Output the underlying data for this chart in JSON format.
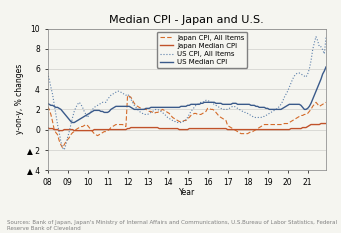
{
  "title": "Median CPI - Japan and U.S.",
  "ylabel": "y-on-y, % changes",
  "xlabel": "Year",
  "source_text": "Sources: Bank of Japan, Japan's Ministry of Internal Affairs and Communications, U.S.Bureau of Labor Statistics, Federal\nReserve Bank of Cleveland",
  "ylim": [
    -4,
    10
  ],
  "yticks": [
    -4,
    -2,
    0,
    2,
    4,
    6,
    8,
    10
  ],
  "ytick_labels": [
    "▲ 4",
    "▲ 2",
    "0",
    "2",
    "4",
    "6",
    "8",
    "10"
  ],
  "xticks": [
    0,
    12,
    24,
    36,
    48,
    60,
    72,
    84,
    96,
    108,
    120,
    132,
    144,
    156,
    168
  ],
  "xtick_labels": [
    "08",
    "09",
    "10",
    "11",
    "12",
    "13",
    "14",
    "15",
    "16",
    "17",
    "18",
    "19",
    "20",
    "21",
    ""
  ],
  "legend": [
    "Japan CPI, All Items",
    "Japan Median CPI",
    "US CPI, All Items",
    "US Median CPI"
  ],
  "colors": {
    "japan_cpi": "#d46b2a",
    "japan_median": "#c0522a",
    "us_cpi": "#5b7faa",
    "us_median": "#3a5a8a"
  },
  "japan_cpi_all": [
    2.3,
    2.0,
    1.5,
    0.8,
    0.0,
    -0.3,
    -0.5,
    -1.1,
    -1.5,
    -1.8,
    -1.5,
    -1.2,
    -1.0,
    -0.8,
    -0.5,
    -0.3,
    -0.2,
    0.0,
    0.1,
    0.2,
    0.3,
    0.3,
    0.4,
    0.5,
    0.4,
    0.2,
    0.0,
    -0.2,
    -0.4,
    -0.5,
    -0.6,
    -0.5,
    -0.4,
    -0.3,
    -0.2,
    -0.2,
    -0.1,
    0.0,
    0.2,
    0.3,
    0.4,
    0.5,
    0.5,
    0.5,
    0.5,
    0.5,
    0.4,
    0.3,
    3.4,
    3.3,
    3.2,
    2.9,
    2.6,
    2.4,
    2.3,
    2.2,
    2.1,
    2.0,
    2.0,
    2.0,
    1.9,
    1.8,
    1.8,
    1.7,
    1.6,
    1.7,
    1.7,
    1.8,
    1.9,
    2.0,
    1.9,
    1.8,
    1.7,
    1.6,
    1.4,
    1.2,
    1.1,
    1.0,
    0.9,
    0.8,
    0.8,
    0.8,
    0.9,
    0.9,
    1.1,
    1.2,
    1.4,
    1.5,
    1.6,
    1.6,
    1.5,
    1.5,
    1.5,
    1.6,
    1.7,
    1.8,
    2.1,
    2.1,
    2.0,
    2.0,
    1.9,
    1.7,
    1.5,
    1.3,
    1.2,
    1.1,
    1.0,
    0.9,
    0.4,
    0.3,
    0.2,
    0.1,
    0.0,
    -0.1,
    -0.2,
    -0.3,
    -0.4,
    -0.4,
    -0.4,
    -0.4,
    -0.4,
    -0.3,
    -0.2,
    -0.2,
    -0.1,
    0.0,
    0.1,
    0.2,
    0.3,
    0.4,
    0.5,
    0.5,
    0.5,
    0.5,
    0.5,
    0.5,
    0.5,
    0.5,
    0.5,
    0.5,
    0.5,
    0.5,
    0.6,
    0.6,
    0.6,
    0.7,
    0.8,
    0.9,
    1.0,
    1.1,
    1.2,
    1.3,
    1.4,
    1.4,
    1.5,
    1.5,
    1.6,
    1.8,
    2.0,
    2.3,
    2.5,
    2.7,
    2.5,
    2.3,
    2.4,
    2.5,
    2.6,
    2.7
  ],
  "japan_median_cpi": [
    0.2,
    0.1,
    0.1,
    0.1,
    0.0,
    0.0,
    0.0,
    -0.1,
    -0.1,
    -0.1,
    0.0,
    0.0,
    0.0,
    0.0,
    0.0,
    0.0,
    -0.1,
    -0.1,
    -0.1,
    -0.1,
    -0.1,
    -0.1,
    -0.1,
    -0.1,
    -0.1,
    -0.1,
    -0.1,
    -0.1,
    0.0,
    0.0,
    0.0,
    0.0,
    0.0,
    0.0,
    0.0,
    0.0,
    0.0,
    0.0,
    0.0,
    0.0,
    0.0,
    0.0,
    0.0,
    0.0,
    0.0,
    0.0,
    0.0,
    0.0,
    0.1,
    0.1,
    0.2,
    0.2,
    0.2,
    0.2,
    0.2,
    0.2,
    0.2,
    0.2,
    0.2,
    0.2,
    0.2,
    0.2,
    0.2,
    0.2,
    0.2,
    0.2,
    0.2,
    0.1,
    0.1,
    0.1,
    0.1,
    0.1,
    0.1,
    0.1,
    0.1,
    0.1,
    0.1,
    0.1,
    0.1,
    0.0,
    0.0,
    0.0,
    0.0,
    0.0,
    0.0,
    0.1,
    0.1,
    0.1,
    0.1,
    0.1,
    0.1,
    0.1,
    0.1,
    0.1,
    0.1,
    0.1,
    0.1,
    0.1,
    0.1,
    0.1,
    0.1,
    0.1,
    0.1,
    0.1,
    0.1,
    0.1,
    0.1,
    0.1,
    0.0,
    0.0,
    0.0,
    0.0,
    0.0,
    0.0,
    0.0,
    0.0,
    0.0,
    0.0,
    0.0,
    0.0,
    0.0,
    0.0,
    0.0,
    0.0,
    0.0,
    0.0,
    0.0,
    0.0,
    0.0,
    0.0,
    0.0,
    0.0,
    0.0,
    0.0,
    0.0,
    0.0,
    0.0,
    0.0,
    0.0,
    0.0,
    0.0,
    0.0,
    0.0,
    0.0,
    0.0,
    0.0,
    0.1,
    0.1,
    0.1,
    0.1,
    0.1,
    0.1,
    0.1,
    0.2,
    0.2,
    0.2,
    0.3,
    0.4,
    0.5,
    0.5,
    0.5,
    0.5,
    0.5,
    0.5,
    0.6,
    0.6,
    0.6,
    0.6
  ],
  "us_cpi_all": [
    5.6,
    5.0,
    4.2,
    3.5,
    2.5,
    1.5,
    0.5,
    -0.3,
    -1.2,
    -1.8,
    -2.0,
    -1.5,
    -0.8,
    -0.2,
    0.5,
    1.2,
    1.8,
    2.2,
    2.5,
    2.7,
    2.5,
    2.2,
    1.8,
    1.5,
    1.2,
    1.5,
    1.8,
    2.0,
    2.2,
    2.3,
    2.4,
    2.5,
    2.6,
    2.7,
    2.7,
    2.7,
    3.0,
    3.2,
    3.4,
    3.5,
    3.6,
    3.7,
    3.8,
    3.8,
    3.7,
    3.6,
    3.5,
    3.4,
    3.5,
    3.3,
    3.0,
    2.7,
    2.4,
    2.2,
    2.0,
    1.8,
    1.7,
    1.6,
    1.5,
    1.5,
    1.5,
    1.6,
    1.7,
    1.8,
    1.9,
    2.0,
    2.0,
    1.9,
    1.8,
    1.7,
    1.5,
    1.4,
    1.2,
    1.1,
    1.0,
    0.9,
    0.8,
    0.8,
    0.7,
    0.7,
    0.7,
    0.8,
    0.8,
    1.0,
    1.2,
    1.5,
    1.8,
    2.0,
    2.2,
    2.4,
    2.5,
    2.6,
    2.7,
    2.7,
    2.8,
    2.9,
    2.9,
    2.8,
    2.7,
    2.6,
    2.5,
    2.4,
    2.3,
    2.2,
    2.1,
    2.0,
    2.0,
    2.0,
    2.0,
    2.1,
    2.2,
    2.3,
    2.3,
    2.2,
    2.1,
    2.0,
    1.9,
    1.8,
    1.7,
    1.7,
    1.6,
    1.5,
    1.4,
    1.3,
    1.2,
    1.2,
    1.2,
    1.2,
    1.2,
    1.3,
    1.3,
    1.4,
    1.5,
    1.6,
    1.7,
    1.8,
    1.9,
    2.0,
    2.1,
    2.3,
    2.5,
    2.8,
    3.2,
    3.5,
    3.8,
    4.2,
    4.6,
    5.0,
    5.3,
    5.5,
    5.6,
    5.6,
    5.5,
    5.4,
    5.3,
    5.2,
    5.5,
    6.0,
    6.8,
    7.9,
    8.6,
    9.2,
    8.8,
    8.2,
    8.2,
    7.9,
    7.5,
    9.1
  ],
  "us_median_cpi": [
    2.6,
    2.5,
    2.4,
    2.4,
    2.3,
    2.2,
    2.2,
    2.1,
    2.0,
    1.8,
    1.6,
    1.4,
    1.2,
    1.0,
    0.8,
    0.7,
    0.7,
    0.8,
    0.9,
    1.0,
    1.1,
    1.2,
    1.3,
    1.4,
    1.5,
    1.6,
    1.7,
    1.8,
    1.9,
    1.9,
    1.9,
    1.9,
    1.8,
    1.8,
    1.7,
    1.7,
    1.7,
    1.8,
    2.0,
    2.1,
    2.2,
    2.3,
    2.3,
    2.3,
    2.3,
    2.3,
    2.3,
    2.3,
    2.3,
    2.3,
    2.2,
    2.1,
    2.0,
    2.0,
    2.0,
    2.0,
    2.0,
    2.0,
    2.0,
    2.1,
    2.1,
    2.1,
    2.2,
    2.2,
    2.2,
    2.2,
    2.2,
    2.2,
    2.2,
    2.2,
    2.2,
    2.2,
    2.2,
    2.2,
    2.2,
    2.2,
    2.2,
    2.2,
    2.2,
    2.2,
    2.3,
    2.3,
    2.3,
    2.3,
    2.4,
    2.4,
    2.5,
    2.5,
    2.5,
    2.5,
    2.5,
    2.5,
    2.6,
    2.6,
    2.7,
    2.7,
    2.7,
    2.7,
    2.7,
    2.7,
    2.7,
    2.6,
    2.6,
    2.6,
    2.6,
    2.5,
    2.5,
    2.5,
    2.5,
    2.5,
    2.5,
    2.6,
    2.6,
    2.6,
    2.5,
    2.5,
    2.5,
    2.5,
    2.5,
    2.5,
    2.5,
    2.5,
    2.4,
    2.4,
    2.4,
    2.3,
    2.3,
    2.2,
    2.2,
    2.2,
    2.2,
    2.1,
    2.1,
    2.0,
    2.0,
    2.0,
    2.0,
    2.0,
    2.0,
    2.0,
    2.0,
    2.1,
    2.2,
    2.3,
    2.4,
    2.5,
    2.5,
    2.5,
    2.5,
    2.5,
    2.5,
    2.5,
    2.4,
    2.2,
    2.0,
    2.0,
    2.1,
    2.3,
    2.6,
    3.0,
    3.4,
    3.8,
    4.2,
    4.6,
    5.0,
    5.5,
    5.8,
    6.2
  ]
}
